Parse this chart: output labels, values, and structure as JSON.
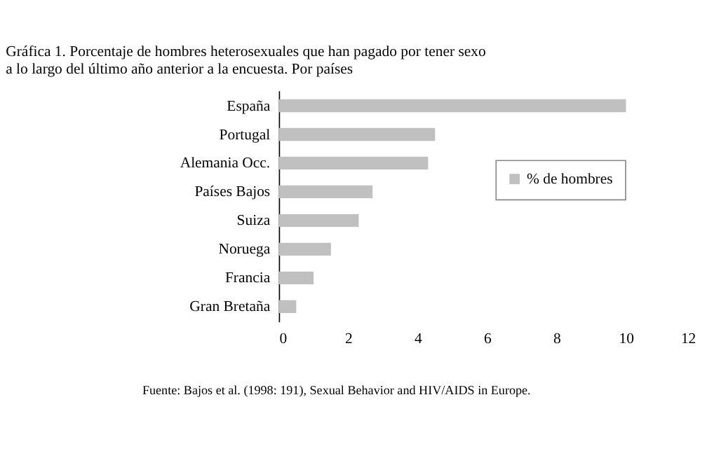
{
  "chart_data": {
    "type": "bar",
    "orientation": "horizontal",
    "title": "Gráfica 1. Porcentaje de hombres heterosexuales que han pagado por tener sexo a lo largo del último año anterior a la encuesta. Por países",
    "categories": [
      "España",
      "Portugal",
      "Alemania Occ.",
      "Países Bajos",
      "Suiza",
      "Noruega",
      "Francia",
      "Gran Bretaña"
    ],
    "series": [
      {
        "name": "% de hombres",
        "color": "#c0c0c0",
        "values": [
          10,
          4.5,
          4.3,
          2.7,
          2.3,
          1.5,
          1.0,
          0.5
        ]
      }
    ],
    "xlim": [
      0,
      12
    ],
    "xticks": [
      0,
      2,
      4,
      6,
      8,
      10,
      12
    ],
    "grid": false,
    "legend": "right",
    "annotations": [
      "Fuente: Bajos et al. (1998: 191), Sexual Behavior and HIV/AIDS in Europe."
    ]
  }
}
